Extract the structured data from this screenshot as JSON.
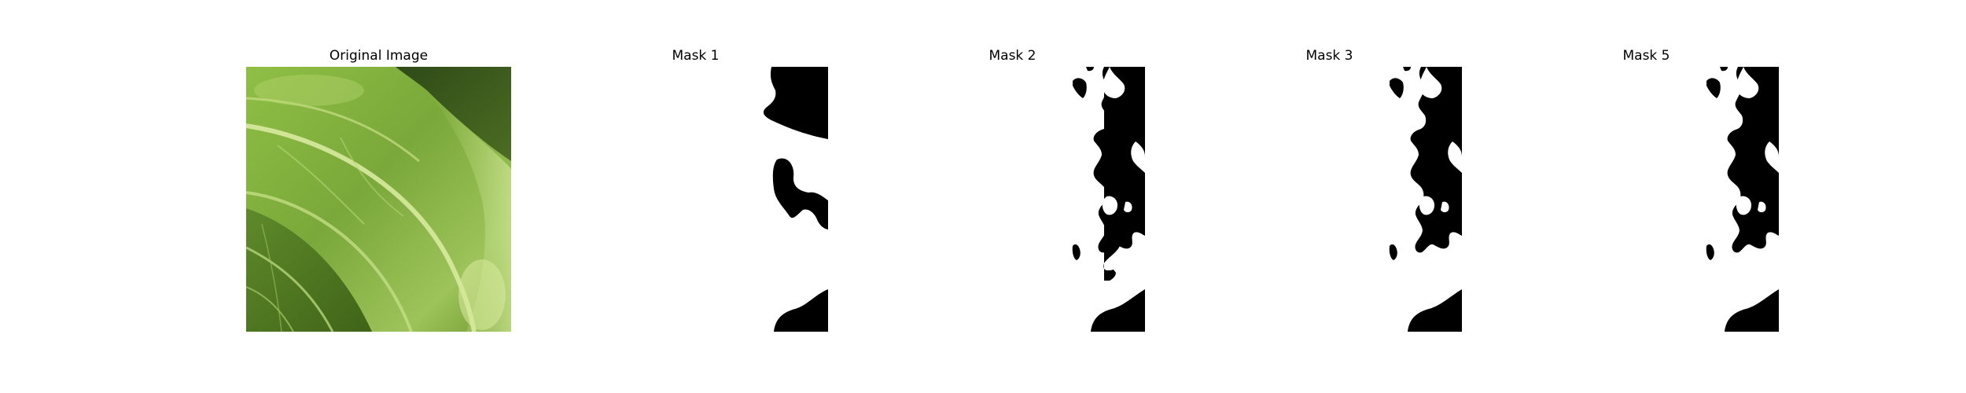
{
  "figure": {
    "panels": [
      {
        "title": "Original Image",
        "kind": "photo",
        "subject": "leaf-closeup"
      },
      {
        "title": "Mask 1",
        "kind": "binary-mask"
      },
      {
        "title": "Mask 2",
        "kind": "binary-mask"
      },
      {
        "title": "Mask 3",
        "kind": "binary-mask"
      },
      {
        "title": "Mask 5",
        "kind": "binary-mask"
      }
    ]
  },
  "colors": {
    "background": "#ffffff",
    "mask_foreground": "#ffffff",
    "mask_background": "#000000",
    "leaf_dark": "#4f7a22",
    "leaf_mid": "#7aa83a",
    "leaf_light": "#b7d57a"
  }
}
